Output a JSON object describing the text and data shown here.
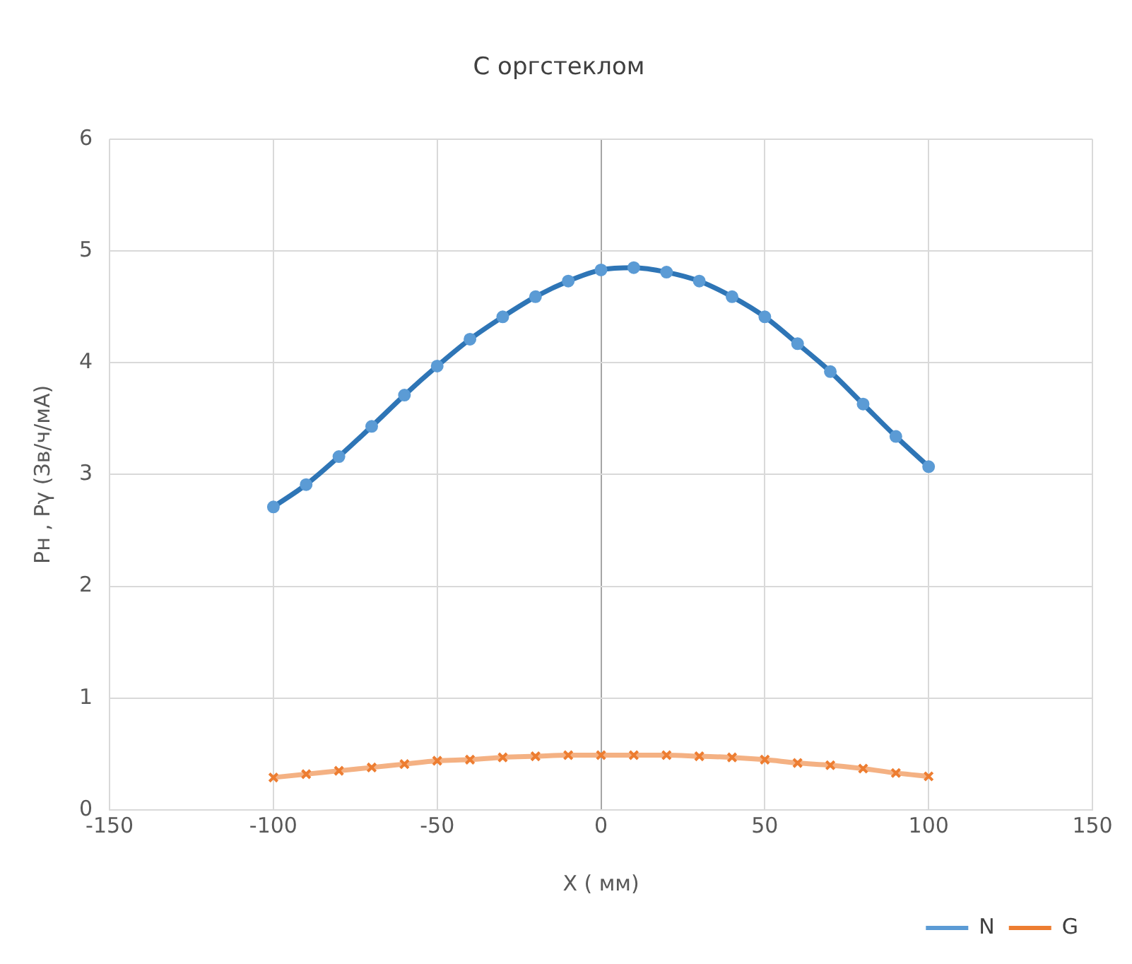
{
  "chart_data": {
    "type": "line",
    "title": "С оргстеклом",
    "xlabel": "X ( мм)",
    "ylabel": "Рн , Рγ (Зв/ч/мА)",
    "x": [
      -100,
      -90,
      -80,
      -70,
      -60,
      -50,
      -40,
      -30,
      -20,
      -10,
      0,
      10,
      20,
      30,
      40,
      50,
      60,
      70,
      80,
      90,
      100
    ],
    "series": [
      {
        "name": "N",
        "color": "#5b9bd5",
        "marker": "circle",
        "values": [
          2.71,
          2.91,
          3.16,
          3.43,
          3.71,
          3.97,
          4.21,
          4.41,
          4.59,
          4.73,
          4.83,
          4.85,
          4.81,
          4.73,
          4.59,
          4.41,
          4.17,
          3.92,
          3.63,
          3.34,
          3.07
        ]
      },
      {
        "name": "G",
        "color": "#ed7d31",
        "marker": "cross",
        "values": [
          0.29,
          0.32,
          0.35,
          0.38,
          0.41,
          0.44,
          0.45,
          0.47,
          0.48,
          0.49,
          0.49,
          0.49,
          0.49,
          0.48,
          0.47,
          0.45,
          0.42,
          0.4,
          0.37,
          0.33,
          0.3
        ]
      }
    ],
    "xlim": [
      -150,
      150
    ],
    "xticks": [
      -150,
      -100,
      -50,
      0,
      50,
      100,
      150
    ],
    "ylim": [
      0,
      6
    ],
    "yticks": [
      0,
      1,
      2,
      3,
      4,
      5,
      6
    ],
    "grid": true,
    "legend": "bottom right"
  }
}
